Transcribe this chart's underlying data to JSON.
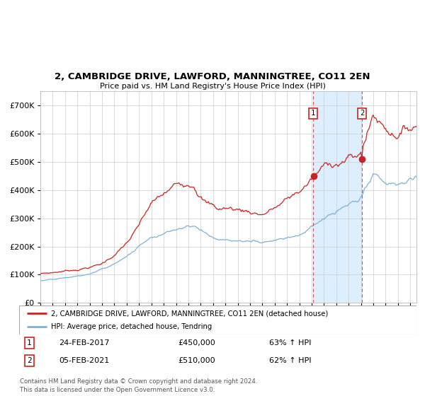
{
  "title1": "2, CAMBRIDGE DRIVE, LAWFORD, MANNINGTREE, CO11 2EN",
  "title2": "Price paid vs. HM Land Registry's House Price Index (HPI)",
  "legend_line1": "2, CAMBRIDGE DRIVE, LAWFORD, MANNINGTREE, CO11 2EN (detached house)",
  "legend_line2": "HPI: Average price, detached house, Tendring",
  "annotation1_label": "1",
  "annotation1_date": "24-FEB-2017",
  "annotation1_price": "£450,000",
  "annotation1_hpi": "63% ↑ HPI",
  "annotation2_label": "2",
  "annotation2_date": "05-FEB-2021",
  "annotation2_price": "£510,000",
  "annotation2_hpi": "62% ↑ HPI",
  "footer": "Contains HM Land Registry data © Crown copyright and database right 2024.\nThis data is licensed under the Open Government Licence v3.0.",
  "purchase1_year": 2017.12,
  "purchase1_value": 450000,
  "purchase2_year": 2021.09,
  "purchase2_value": 510000,
  "red_color": "#cc2222",
  "blue_color": "#7fb0d8",
  "highlight_color": "#ddeeff",
  "ylim_max": 750000,
  "ylim_min": 0,
  "xlim_min": 1995,
  "xlim_max": 2025.5,
  "ylabel_values": [
    0,
    100000,
    200000,
    300000,
    400000,
    500000,
    600000,
    700000
  ]
}
